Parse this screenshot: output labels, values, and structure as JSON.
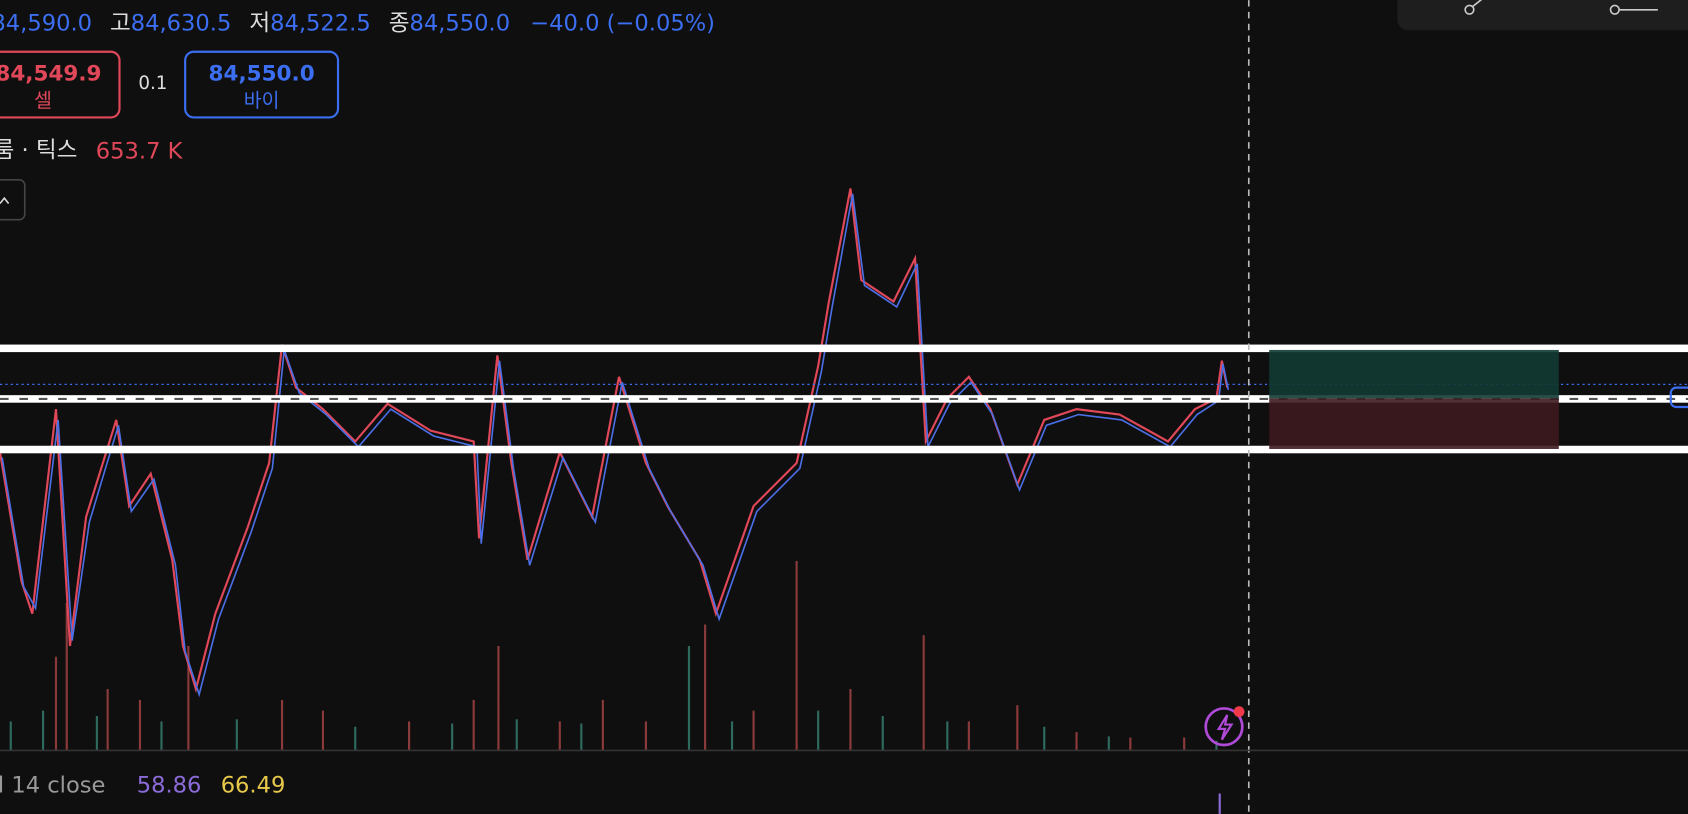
{
  "ohlc": {
    "open": "84,590.0",
    "high_label": "고",
    "high": "84,630.5",
    "low_label": "저",
    "low": "84,522.5",
    "close_label": "종",
    "close": "84,550.0",
    "change": "−40.0 (−0.05%)"
  },
  "trade": {
    "sell_price": "84,549.9",
    "sell_label": "셀",
    "spread": "0.1",
    "buy_price": "84,550.0",
    "buy_label": "바이"
  },
  "volume": {
    "label": "룸 · 틱스",
    "value": "653.7 K"
  },
  "indicator": {
    "label": "l 14 close",
    "value1": "58.86",
    "value2": "66.49"
  }
}
